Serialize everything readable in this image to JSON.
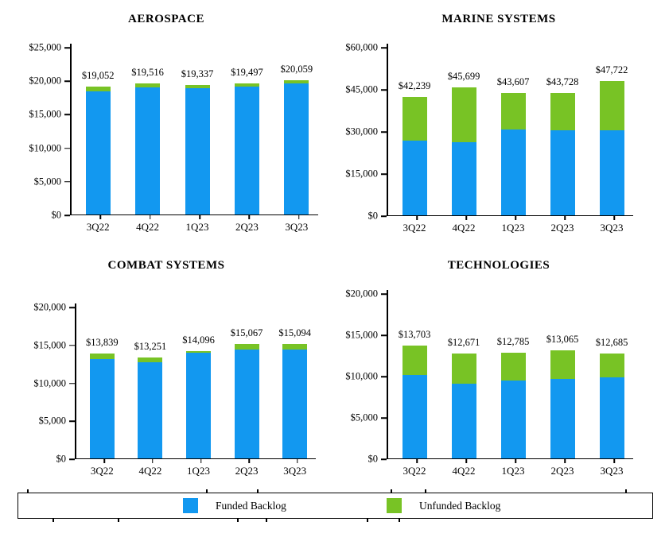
{
  "colors": {
    "funded": "#1298F0",
    "unfunded": "#78C325",
    "axis": "#000000",
    "text": "#000000"
  },
  "legend": {
    "items": [
      {
        "label": "Funded Backlog",
        "color_key": "funded"
      },
      {
        "label": "Unfunded Backlog",
        "color_key": "unfunded"
      }
    ],
    "position": "bottom-shared"
  },
  "chart_data": [
    {
      "type": "bar",
      "stacked": true,
      "title": "AEROSPACE",
      "categories": [
        "3Q22",
        "4Q22",
        "1Q23",
        "2Q23",
        "3Q23"
      ],
      "series": [
        {
          "name": "Funded Backlog",
          "values": [
            18400,
            19000,
            18800,
            19050,
            19550
          ]
        },
        {
          "name": "Unfunded Backlog",
          "values": [
            652,
            516,
            537,
            447,
            509
          ]
        }
      ],
      "totals": [
        19052,
        19516,
        19337,
        19497,
        20059
      ],
      "total_labels": [
        "$19,052",
        "$19,516",
        "$19,337",
        "$19,497",
        "$20,059"
      ],
      "ylim": [
        0,
        25000
      ],
      "yticks": [
        "$25,000",
        "$20,000",
        "$15,000",
        "$10,000",
        "$5,000",
        "$0"
      ],
      "grid": false
    },
    {
      "type": "bar",
      "stacked": true,
      "title": "MARINE SYSTEMS",
      "categories": [
        "3Q22",
        "4Q22",
        "1Q23",
        "2Q23",
        "3Q23"
      ],
      "series": [
        {
          "name": "Funded Backlog",
          "values": [
            26600,
            26000,
            30700,
            30200,
            30400
          ]
        },
        {
          "name": "Unfunded Backlog",
          "values": [
            15639,
            19699,
            12907,
            13528,
            17322
          ]
        }
      ],
      "totals": [
        42239,
        45699,
        43607,
        43728,
        47722
      ],
      "total_labels": [
        "$42,239",
        "$45,699",
        "$43,607",
        "$43,728",
        "$47,722"
      ],
      "ylim": [
        0,
        60000
      ],
      "yticks": [
        "$60,000",
        "$45,000",
        "$30,000",
        "$15,000",
        "$0"
      ],
      "grid": false
    },
    {
      "type": "bar",
      "stacked": true,
      "title": "COMBAT SYSTEMS",
      "categories": [
        "3Q22",
        "4Q22",
        "1Q23",
        "2Q23",
        "3Q23"
      ],
      "series": [
        {
          "name": "Funded Backlog",
          "values": [
            13050,
            12650,
            13900,
            14350,
            14300
          ]
        },
        {
          "name": "Unfunded Backlog",
          "values": [
            789,
            601,
            196,
            717,
            794
          ]
        }
      ],
      "totals": [
        13839,
        13251,
        14096,
        15067,
        15094
      ],
      "total_labels": [
        "$13,839",
        "$13,251",
        "$14,096",
        "$15,067",
        "$15,094"
      ],
      "ylim": [
        0,
        20000
      ],
      "yticks": [
        "$20,000",
        "$15,000",
        "$10,000",
        "$5,000",
        "$0"
      ],
      "grid": false
    },
    {
      "type": "bar",
      "stacked": true,
      "title": "TECHNOLOGIES",
      "categories": [
        "3Q22",
        "4Q22",
        "1Q23",
        "2Q23",
        "3Q23"
      ],
      "series": [
        {
          "name": "Funded Backlog",
          "values": [
            10100,
            9050,
            9450,
            9650,
            9800
          ]
        },
        {
          "name": "Unfunded Backlog",
          "values": [
            3603,
            3621,
            3335,
            3415,
            2885
          ]
        }
      ],
      "totals": [
        13703,
        12671,
        12785,
        13065,
        12685
      ],
      "total_labels": [
        "$13,703",
        "$12,671",
        "$12,785",
        "$13,065",
        "$12,685"
      ],
      "ylim": [
        0,
        20000
      ],
      "yticks": [
        "$20,000",
        "$15,000",
        "$10,000",
        "$5,000",
        "$0"
      ],
      "grid": false
    }
  ]
}
